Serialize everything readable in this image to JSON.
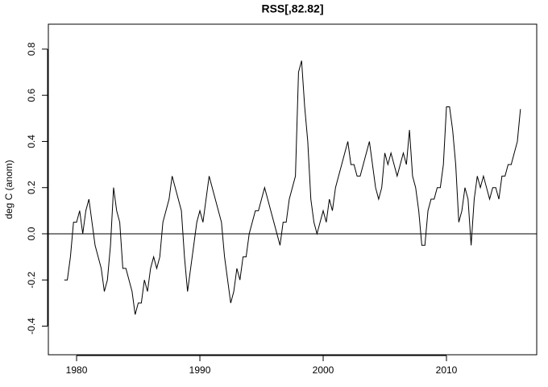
{
  "chart_data": {
    "type": "line",
    "title": "RSS[,82.82]",
    "y_label": "deg C (anom)",
    "color": "#000000",
    "hline": 0,
    "xlim": [
      1977.71,
      2017.32
    ],
    "xticks": [
      1980,
      1990,
      2000,
      2010
    ],
    "ylim": [
      -0.524,
      0.908
    ],
    "yticks": [
      -0.4,
      -0.2,
      {
        "value": 0,
        "label": "0.0"
      },
      0.2,
      0.4,
      0.6,
      0.8
    ],
    "x": [
      1979,
      1979.25,
      1979.5,
      1979.75,
      1980,
      1980.25,
      1980.5,
      1980.75,
      1981,
      1981.25,
      1981.5,
      1981.75,
      1982,
      1982.25,
      1982.5,
      1982.75,
      1983,
      1983.25,
      1983.5,
      1983.75,
      1984,
      1984.25,
      1984.5,
      1984.75,
      1985,
      1985.25,
      1985.5,
      1985.75,
      1986,
      1986.25,
      1986.5,
      1986.75,
      1987,
      1987.25,
      1987.5,
      1987.75,
      1988,
      1988.25,
      1988.5,
      1988.75,
      1989,
      1989.25,
      1989.5,
      1989.75,
      1990,
      1990.25,
      1990.5,
      1990.75,
      1991,
      1991.25,
      1991.5,
      1991.75,
      1992,
      1992.25,
      1992.5,
      1992.75,
      1993,
      1993.25,
      1993.5,
      1993.75,
      1994,
      1994.25,
      1994.5,
      1994.75,
      1995,
      1995.25,
      1995.5,
      1995.75,
      1996,
      1996.25,
      1996.5,
      1996.75,
      1997,
      1997.25,
      1997.5,
      1997.75,
      1998,
      1998.25,
      1998.5,
      1998.75,
      1999,
      1999.25,
      1999.5,
      1999.75,
      2000,
      2000.25,
      2000.5,
      2000.75,
      2001,
      2001.25,
      2001.5,
      2001.75,
      2002,
      2002.25,
      2002.5,
      2002.75,
      2003,
      2003.25,
      2003.5,
      2003.75,
      2004,
      2004.25,
      2004.5,
      2004.75,
      2005,
      2005.25,
      2005.5,
      2005.75,
      2006,
      2006.25,
      2006.5,
      2006.75,
      2007,
      2007.25,
      2007.5,
      2007.75,
      2008,
      2008.25,
      2008.5,
      2008.75,
      2009,
      2009.25,
      2009.5,
      2009.75,
      2010,
      2010.25,
      2010.5,
      2010.75,
      2011,
      2011.25,
      2011.5,
      2011.75,
      2012,
      2012.25,
      2012.5,
      2012.75,
      2013,
      2013.25,
      2013.5,
      2013.75,
      2014,
      2014.25,
      2014.5,
      2014.75,
      2015,
      2015.25,
      2015.5,
      2015.75,
      2016
    ],
    "values": [
      -0.2,
      -0.2,
      -0.1,
      0.05,
      0.05,
      0.1,
      0.0,
      0.1,
      0.15,
      0.05,
      -0.05,
      -0.1,
      -0.15,
      -0.25,
      -0.2,
      -0.05,
      0.2,
      0.1,
      0.05,
      -0.15,
      -0.15,
      -0.2,
      -0.25,
      -0.35,
      -0.3,
      -0.3,
      -0.2,
      -0.25,
      -0.15,
      -0.1,
      -0.15,
      -0.1,
      0.05,
      0.1,
      0.15,
      0.25,
      0.2,
      0.15,
      0.1,
      -0.1,
      -0.25,
      -0.15,
      -0.05,
      0.05,
      0.1,
      0.05,
      0.15,
      0.25,
      0.2,
      0.15,
      0.1,
      0.05,
      -0.1,
      -0.2,
      -0.3,
      -0.25,
      -0.15,
      -0.2,
      -0.1,
      -0.1,
      0.0,
      0.05,
      0.1,
      0.1,
      0.15,
      0.2,
      0.15,
      0.1,
      0.05,
      0.0,
      -0.05,
      0.05,
      0.05,
      0.15,
      0.2,
      0.25,
      0.7,
      0.75,
      0.55,
      0.4,
      0.15,
      0.05,
      0.0,
      0.05,
      0.1,
      0.05,
      0.15,
      0.1,
      0.2,
      0.25,
      0.3,
      0.35,
      0.4,
      0.3,
      0.3,
      0.25,
      0.25,
      0.3,
      0.35,
      0.4,
      0.3,
      0.2,
      0.15,
      0.2,
      0.35,
      0.3,
      0.35,
      0.3,
      0.25,
      0.3,
      0.35,
      0.3,
      0.45,
      0.25,
      0.2,
      0.1,
      -0.05,
      -0.05,
      0.1,
      0.15,
      0.15,
      0.2,
      0.2,
      0.3,
      0.55,
      0.55,
      0.45,
      0.3,
      0.05,
      0.1,
      0.2,
      0.15,
      -0.05,
      0.15,
      0.25,
      0.2,
      0.25,
      0.2,
      0.15,
      0.2,
      0.2,
      0.15,
      0.25,
      0.25,
      0.3,
      0.3,
      0.35,
      0.4,
      0.54
    ]
  }
}
